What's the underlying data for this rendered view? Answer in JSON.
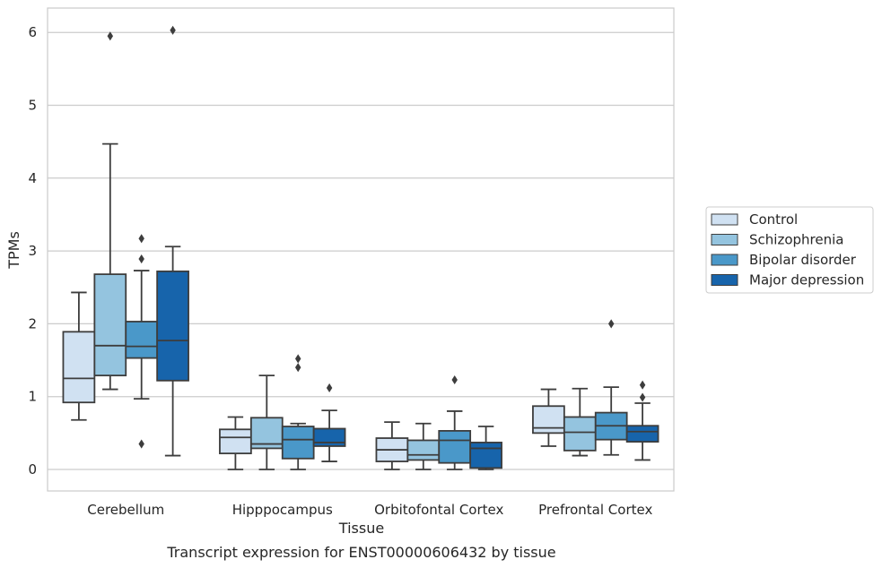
{
  "chart_data": {
    "type": "box",
    "title": "Transcript expression for ENST00000606432 by tissue",
    "xlabel": "Tissue",
    "ylabel": "TPMs",
    "ylim": [
      -0.3,
      6.35
    ],
    "yticks": [
      0,
      1,
      2,
      3,
      4,
      5,
      6
    ],
    "grid": "horizontal",
    "legend_position": "right",
    "categories": [
      "Cerebellum",
      "Hipppocampus",
      "Orbitofontal Cortex",
      "Prefrontal Cortex"
    ],
    "series": [
      {
        "name": "Control",
        "color": "#d0e1f2",
        "boxes": [
          {
            "whislo": 0.68,
            "q1": 0.92,
            "med": 1.25,
            "q3": 1.89,
            "whishi": 2.43,
            "fliers": []
          },
          {
            "whislo": 0.0,
            "q1": 0.22,
            "med": 0.44,
            "q3": 0.55,
            "whishi": 0.72,
            "fliers": []
          },
          {
            "whislo": 0.0,
            "q1": 0.11,
            "med": 0.27,
            "q3": 0.43,
            "whishi": 0.65,
            "fliers": []
          },
          {
            "whislo": 0.32,
            "q1": 0.5,
            "med": 0.57,
            "q3": 0.87,
            "whishi": 1.1,
            "fliers": []
          }
        ]
      },
      {
        "name": "Schizophrenia",
        "color": "#94c4df",
        "boxes": [
          {
            "whislo": 1.1,
            "q1": 1.29,
            "med": 1.7,
            "q3": 2.68,
            "whishi": 4.47,
            "fliers": [
              5.95
            ]
          },
          {
            "whislo": 0.0,
            "q1": 0.29,
            "med": 0.35,
            "q3": 0.71,
            "whishi": 1.29,
            "fliers": []
          },
          {
            "whislo": 0.0,
            "q1": 0.13,
            "med": 0.2,
            "q3": 0.4,
            "whishi": 0.63,
            "fliers": []
          },
          {
            "whislo": 0.19,
            "q1": 0.26,
            "med": 0.51,
            "q3": 0.72,
            "whishi": 1.11,
            "fliers": []
          }
        ]
      },
      {
        "name": "Bipolar disorder",
        "color": "#4a98c9",
        "boxes": [
          {
            "whislo": 0.97,
            "q1": 1.53,
            "med": 1.69,
            "q3": 2.03,
            "whishi": 2.73,
            "fliers": [
              3.17,
              2.89,
              0.35
            ]
          },
          {
            "whislo": 0.0,
            "q1": 0.15,
            "med": 0.41,
            "q3": 0.59,
            "whishi": 0.63,
            "fliers": [
              1.52,
              1.4
            ]
          },
          {
            "whislo": 0.0,
            "q1": 0.09,
            "med": 0.4,
            "q3": 0.53,
            "whishi": 0.8,
            "fliers": [
              1.23
            ]
          },
          {
            "whislo": 0.2,
            "q1": 0.41,
            "med": 0.6,
            "q3": 0.78,
            "whishi": 1.13,
            "fliers": [
              2.0
            ]
          }
        ]
      },
      {
        "name": "Major depression",
        "color": "#1764ab",
        "boxes": [
          {
            "whislo": 0.19,
            "q1": 1.22,
            "med": 1.77,
            "q3": 2.72,
            "whishi": 3.06,
            "fliers": [
              6.03
            ]
          },
          {
            "whislo": 0.11,
            "q1": 0.32,
            "med": 0.37,
            "q3": 0.56,
            "whishi": 0.81,
            "fliers": [
              1.12
            ]
          },
          {
            "whislo": 0.0,
            "q1": 0.02,
            "med": 0.29,
            "q3": 0.37,
            "whishi": 0.59,
            "fliers": []
          },
          {
            "whislo": 0.13,
            "q1": 0.38,
            "med": 0.52,
            "q3": 0.6,
            "whishi": 0.91,
            "fliers": [
              1.16,
              0.99
            ]
          }
        ]
      }
    ]
  }
}
